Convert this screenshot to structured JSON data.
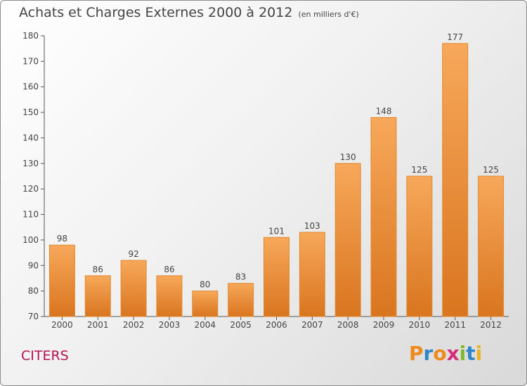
{
  "title": "Achats et Charges Externes 2000 à 2012",
  "unit": "(en milliers d'€)",
  "commune": "CITERS",
  "logo": {
    "letters": [
      "P",
      "r",
      "o",
      "x",
      "i",
      "t",
      "i"
    ],
    "colors": [
      "#f08a1c",
      "#2e86c9",
      "#f08a1c",
      "#d62d7a",
      "#7fb82b",
      "#2e86c9",
      "#f0b11c"
    ]
  },
  "colors": {
    "bar_top": "#f7a85a",
    "bar_bottom": "#d9751f",
    "bar_border": "#e08a30",
    "text": "#444444",
    "commune": "#b5124e"
  },
  "chart_data": {
    "type": "bar",
    "categories": [
      "2000",
      "2001",
      "2002",
      "2003",
      "2004",
      "2005",
      "2006",
      "2007",
      "2008",
      "2009",
      "2010",
      "2011",
      "2012"
    ],
    "values": [
      98,
      86,
      92,
      86,
      80,
      83,
      101,
      103,
      130,
      148,
      125,
      177,
      125
    ],
    "title": "Achats et Charges Externes 2000 à 2012",
    "ylabel": "",
    "xlabel": "",
    "ylim": [
      70,
      180
    ],
    "yticks": [
      70,
      80,
      90,
      100,
      110,
      120,
      130,
      140,
      150,
      160,
      170,
      180
    ],
    "grid": false,
    "data_labels": true
  }
}
